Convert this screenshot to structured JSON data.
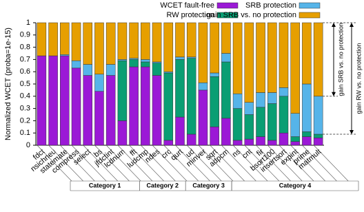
{
  "chart_data": {
    "type": "stacked_bar",
    "y_label": "Normalized WCET (proba=1e-15)",
    "groups": [
      {
        "name": "Category 1",
        "categories": [
          "fdct",
          "nsichneu",
          "statemate",
          "compress",
          "select",
          "bs"
        ]
      },
      {
        "name": "Category 2",
        "categories": [
          "jfdctint",
          "lcdnum",
          "fft",
          "ludcmp"
        ]
      },
      {
        "name": "Category 3",
        "categories": [
          "ndes",
          "crc",
          "qurt",
          "ud"
        ]
      },
      {
        "name": "Category 4",
        "categories": [
          "minver",
          "sqrt",
          "adpcm",
          "ns",
          "cnt",
          "fir",
          "bsort100",
          "insertsort",
          "expint",
          "prime",
          "matmult"
        ]
      }
    ],
    "series": [
      {
        "name": "WCET fault-free",
        "color": "#9b19d6",
        "values": [
          0.73,
          0.73,
          0.73,
          0.63,
          0.57,
          0.44,
          0.57,
          0.2,
          0.64,
          0.64,
          0.57,
          0.04,
          0.23,
          0.09,
          0.45,
          0.15,
          0.22,
          0.04,
          0.05,
          0.07,
          0.04,
          0.1,
          0.03,
          0.07,
          0.06
        ]
      },
      {
        "name": "RW protection",
        "color": "#0a9e73",
        "values": [
          0,
          0,
          0,
          0,
          0,
          0,
          0,
          0.49,
          0.06,
          0.04,
          0.1,
          0.55,
          0.47,
          0.62,
          0,
          0.41,
          0.46,
          0.26,
          0.2,
          0.24,
          0.3,
          0.3,
          0.04,
          0.04,
          0.03
        ]
      },
      {
        "name": "SRB protection",
        "color": "#56b4e9",
        "values": [
          0,
          0,
          0.01,
          0.06,
          0.09,
          0.14,
          0.09,
          0.01,
          0.01,
          0.02,
          0.01,
          0.01,
          0.02,
          0.01,
          0.06,
          0.03,
          0.07,
          0.12,
          0.1,
          0.12,
          0.09,
          0.07,
          0.19,
          0.39,
          0.31
        ]
      },
      {
        "name": "gain SRB vs. no protection",
        "color": "#e69f00",
        "values": [
          0.27,
          0.27,
          0.26,
          0.31,
          0.34,
          0.42,
          0.34,
          0.3,
          0.29,
          0.3,
          0.32,
          0.4,
          0.28,
          0.28,
          0.49,
          0.41,
          0.25,
          0.58,
          0.65,
          0.57,
          0.57,
          0.53,
          0.74,
          0.5,
          0.6
        ]
      }
    ],
    "annotations": [
      "gain SRB vs. no protection",
      "gain RW vs. no protection"
    ],
    "ylim": [
      0,
      1
    ],
    "yticks": [
      0,
      0.1,
      0.2,
      0.3,
      0.4,
      0.5,
      0.6,
      0.7,
      0.8,
      0.9,
      1
    ]
  }
}
